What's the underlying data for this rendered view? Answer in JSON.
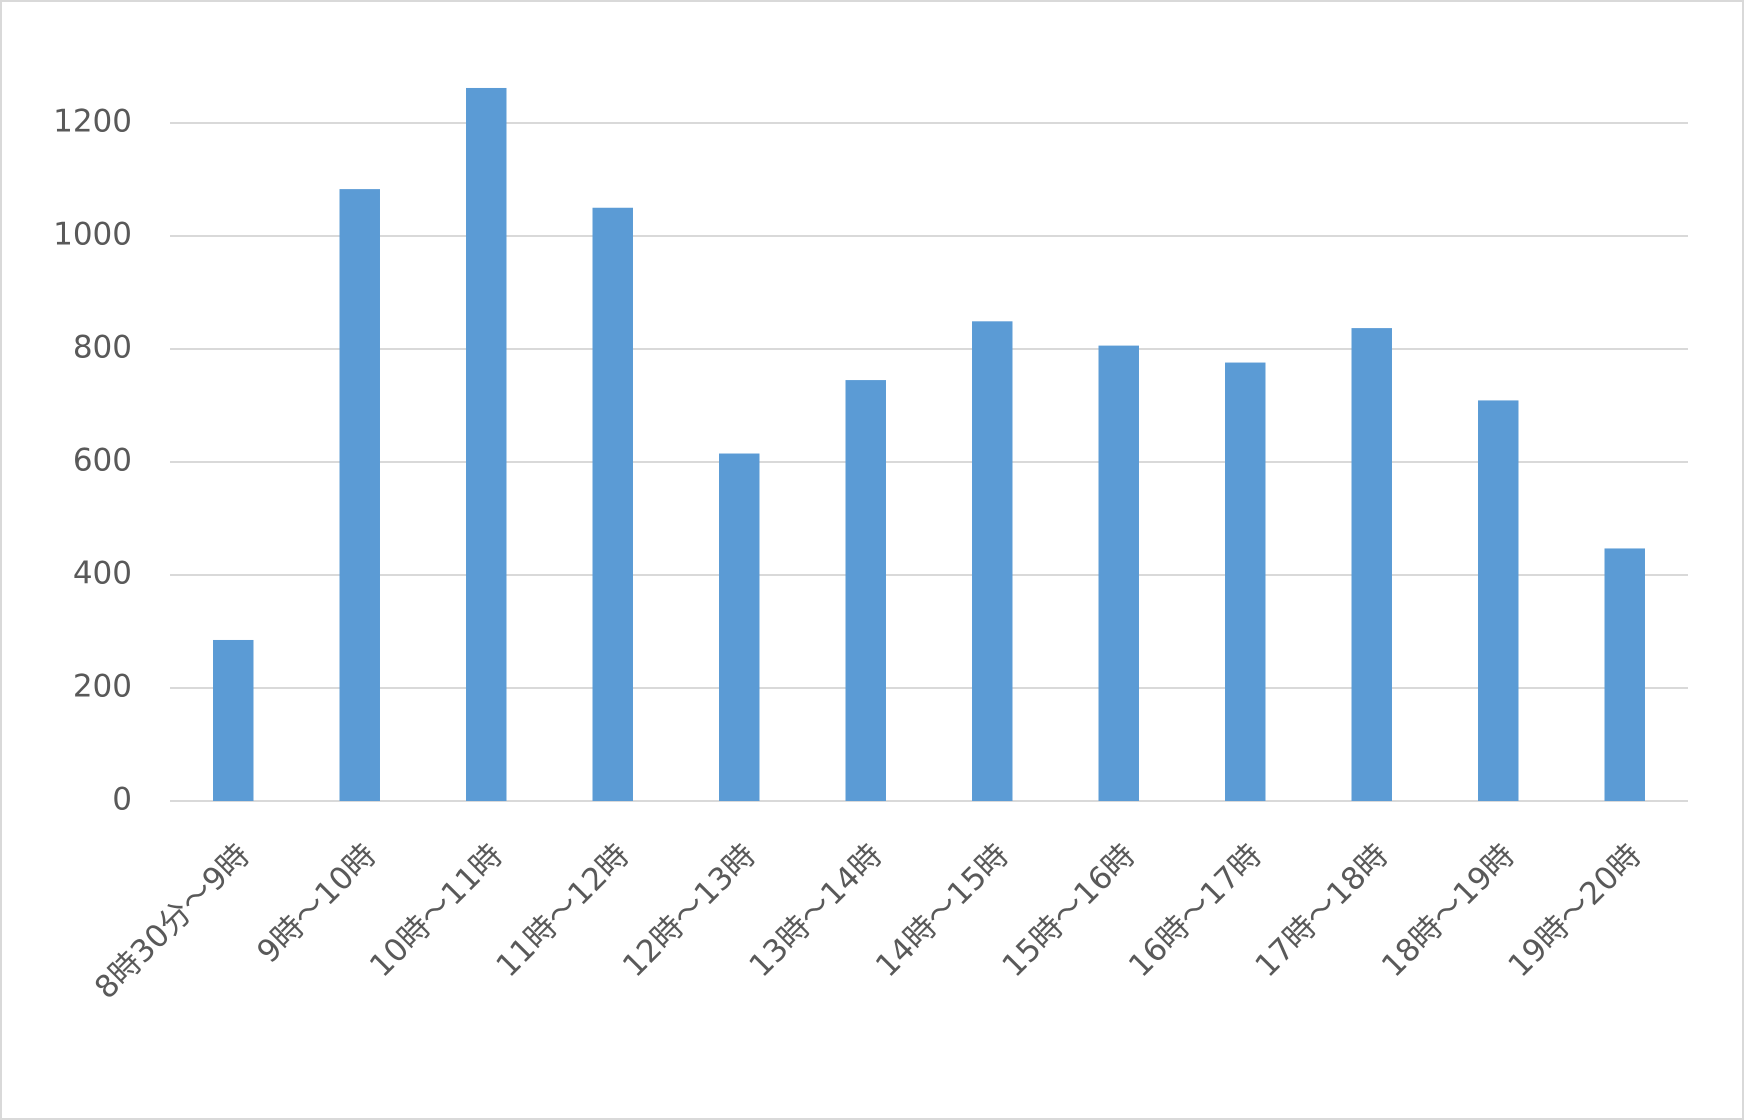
{
  "chart_data": {
    "type": "bar",
    "categories": [
      "8時30分～9時",
      "9時～10時",
      "10時～11時",
      "11時～12時",
      "12時～13時",
      "13時～14時",
      "14時～15時",
      "15時～16時",
      "16時～17時",
      "17時～18時",
      "18時～19時",
      "19時～20時"
    ],
    "values": [
      285,
      1083,
      1262,
      1050,
      615,
      745,
      849,
      806,
      776,
      837,
      709,
      447
    ],
    "color": "#5b9bd5",
    "ylim": [
      0,
      1400
    ],
    "yticks": [
      0,
      200,
      400,
      600,
      800,
      1000,
      1200
    ],
    "grid": true
  }
}
